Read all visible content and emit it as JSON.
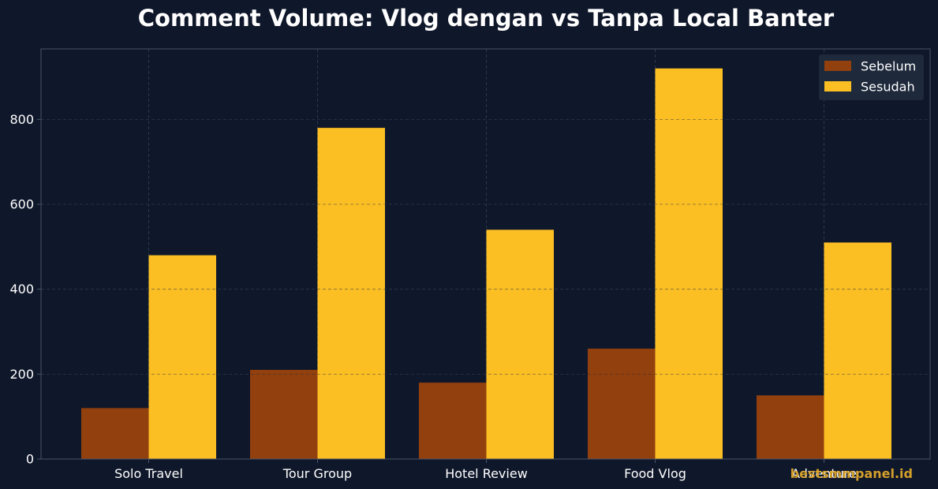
{
  "chart_data": {
    "type": "bar",
    "title": "Comment Volume: Vlog dengan vs Tanpa Local Banter",
    "xlabel": "",
    "ylabel": "",
    "categories": [
      "Solo Travel",
      "Tour Group",
      "Hotel Review",
      "Food Vlog",
      "Adventure"
    ],
    "series": [
      {
        "name": "Sebelum",
        "values": [
          120,
          210,
          180,
          260,
          150
        ],
        "color": "#92400e"
      },
      {
        "name": "Sesudah",
        "values": [
          480,
          780,
          540,
          920,
          510
        ],
        "color": "#fbbf24"
      }
    ],
    "ylim": [
      0,
      966
    ],
    "yticks": [
      0,
      200,
      400,
      600,
      800
    ],
    "grid": true,
    "legend_position": "top-right"
  },
  "watermark": "bestsmmpanel.id",
  "colors": {
    "background": "#0f172a",
    "grid": "#334155",
    "axis": "#475569",
    "legend_background": "#1e293b",
    "watermark": "#d4a02a"
  }
}
